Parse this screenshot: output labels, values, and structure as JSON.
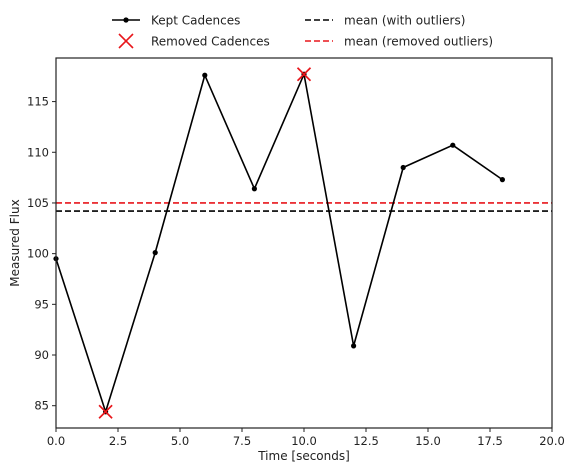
{
  "chart_data": {
    "type": "line",
    "title": "",
    "xlabel": "Time [seconds]",
    "ylabel": "Measured Flux",
    "xlim": [
      0,
      20
    ],
    "ylim": [
      82.8,
      119.3
    ],
    "xticks": [
      0,
      2.5,
      5,
      7.5,
      10,
      12.5,
      15,
      17.5,
      20
    ],
    "xtick_labels": [
      "0.0",
      "2.5",
      "5.0",
      "7.5",
      "10.0",
      "12.5",
      "15.0",
      "17.5",
      "20.0"
    ],
    "yticks": [
      85,
      90,
      95,
      100,
      105,
      110,
      115
    ],
    "ytick_labels": [
      "85",
      "90",
      "95",
      "100",
      "105",
      "110",
      "115"
    ],
    "grid": false,
    "legend_position": "top-center",
    "series": [
      {
        "name": "Kept Cadences",
        "kind": "line-with-markers",
        "color": "#000000",
        "x": [
          0,
          2,
          4,
          6,
          8,
          10,
          12,
          14,
          16,
          18
        ],
        "y": [
          99.5,
          84.4,
          100.1,
          117.6,
          106.4,
          117.7,
          90.9,
          108.5,
          110.7,
          107.3
        ]
      },
      {
        "name": "Removed Cadences",
        "kind": "scatter-x",
        "color": "#e8161b",
        "x": [
          2,
          10
        ],
        "y": [
          84.4,
          117.7
        ]
      },
      {
        "name": "mean (with outliers)",
        "kind": "hline-dashed",
        "color": "#000000",
        "y": 104.2
      },
      {
        "name": "mean (removed outliers)",
        "kind": "hline-dashed",
        "color": "#e8161b",
        "y": 105.0
      }
    ]
  }
}
